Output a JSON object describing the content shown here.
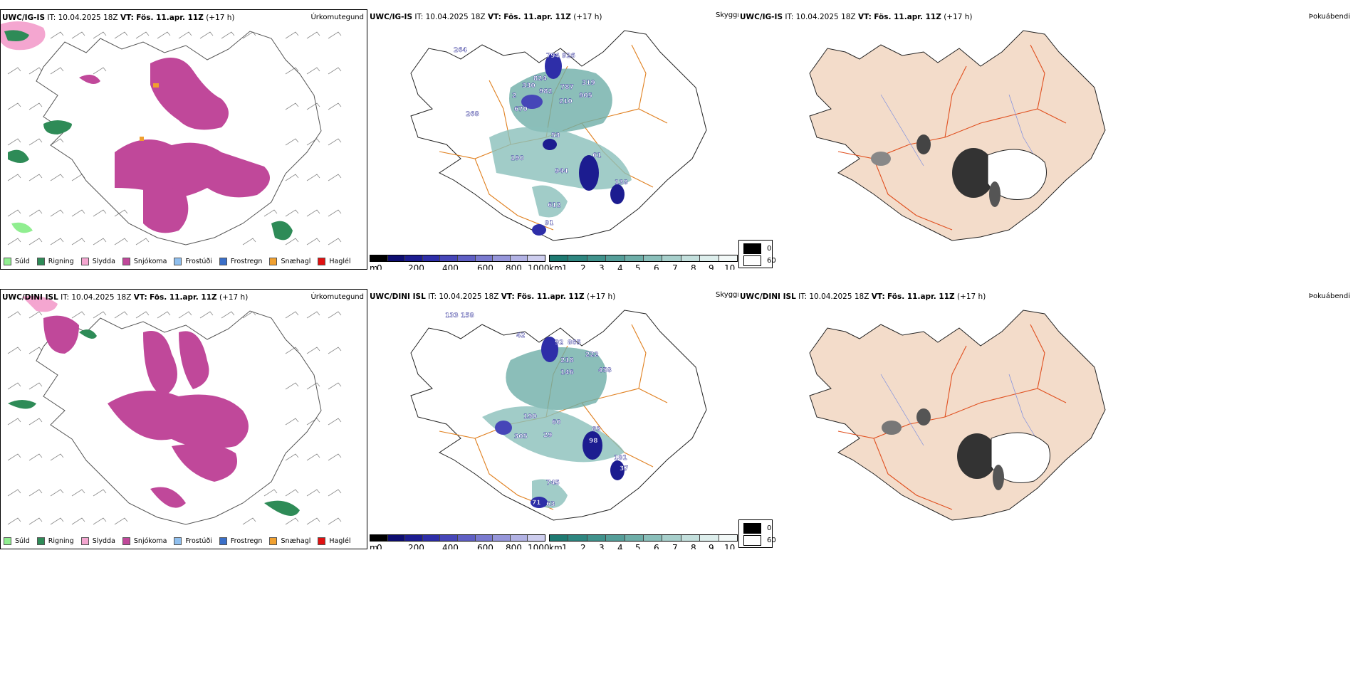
{
  "rows": [
    {
      "model": "UWC/IG-IS",
      "it_label": "IT:",
      "it_value": "10.04.2025 18Z",
      "vt_label": "VT:",
      "vt_value": "Fös. 11.apr. 11Z",
      "lead": "(+17 h)"
    },
    {
      "model": "UWC/DINI ISL",
      "it_label": "IT:",
      "it_value": "10.04.2025 18Z",
      "vt_label": "VT:",
      "vt_value": "Fös. 11.apr. 11Z",
      "lead": "(+17 h)"
    }
  ],
  "panel_labels": {
    "precip": "Úrkomutegund",
    "cloud": "Skyggni",
    "fog": "Þokuábendi"
  },
  "precip_legend": [
    {
      "label": "Súld",
      "color": "#90ee90"
    },
    {
      "label": "Rigning",
      "color": "#2e8b57"
    },
    {
      "label": "Slydda",
      "color": "#f4a6d0"
    },
    {
      "label": "Snjókoma",
      "color": "#c0489a"
    },
    {
      "label": "Frostúði",
      "color": "#8fbfee"
    },
    {
      "label": "Frostregn",
      "color": "#3a6fc8"
    },
    {
      "label": "Snæhagl",
      "color": "#f0a030"
    },
    {
      "label": "Haglél",
      "color": "#e01010"
    }
  ],
  "cloud_base": {
    "unit": "m",
    "ticks": [
      "0",
      "200",
      "400",
      "600",
      "800",
      "1000"
    ],
    "colors": [
      "#000000",
      "#0d0d70",
      "#1c1c90",
      "#2e2ea8",
      "#4646b8",
      "#5f5fc4",
      "#7a7acf",
      "#9696da",
      "#b2b2e4",
      "#cdcdee"
    ]
  },
  "visibility": {
    "unit": "km",
    "ticks": [
      "1",
      "2",
      "3",
      "4",
      "5",
      "6",
      "7",
      "8",
      "9",
      "10"
    ],
    "colors": [
      "#1f7a72",
      "#2e8680",
      "#40928c",
      "#559e99",
      "#6eaea8",
      "#8abfba",
      "#a7cfcb",
      "#c3dfdc",
      "#ddeeec",
      "#f2f8f7"
    ]
  },
  "fog_legend": {
    "low": "0",
    "high": "60"
  },
  "map_values": {
    "row0": [
      "264",
      "794",
      "926",
      "824",
      "330",
      "319",
      "787",
      "982",
      "905",
      "2",
      "210",
      "670",
      "268",
      "53",
      "61",
      "190",
      "944",
      "138",
      "612",
      "91"
    ],
    "row1": [
      "133",
      "158",
      "42",
      "92",
      "865",
      "222",
      "218",
      "146",
      "458",
      "190",
      "60",
      "63",
      "98",
      "305",
      "29",
      "181",
      "37",
      "745",
      "71",
      "63"
    ]
  }
}
